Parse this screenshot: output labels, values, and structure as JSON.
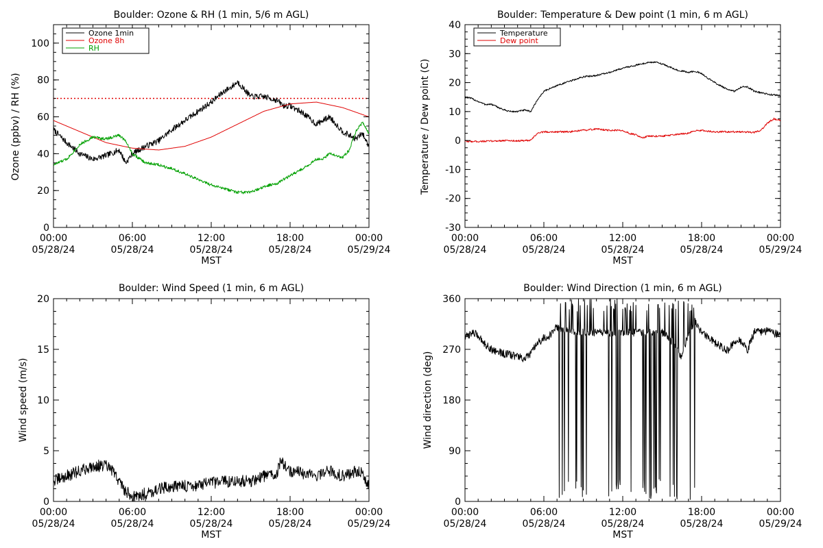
{
  "chart_data": [
    {
      "type": "line",
      "title": "Boulder: Ozone & RH (1 min, 5/6 m AGL)",
      "xlabel": "MST",
      "ylabel": "Ozone (ppbv) / RH (%)",
      "xlim": [
        0,
        24
      ],
      "ylim": [
        0,
        110
      ],
      "yticks": [
        0,
        20,
        40,
        60,
        80,
        100
      ],
      "xticks": [
        {
          "time": "00:00",
          "date": "05/28/24"
        },
        {
          "time": "06:00",
          "date": "05/28/24"
        },
        {
          "time": "12:00",
          "date": "05/28/24"
        },
        {
          "time": "18:00",
          "date": "05/28/24"
        },
        {
          "time": "00:00",
          "date": "05/29/24"
        }
      ],
      "legend_position": "top-left",
      "reference_lines": [
        {
          "y": 70,
          "color": "#e00000",
          "style": "dotted"
        }
      ],
      "series": [
        {
          "name": "Ozone 1min",
          "color": "#000000",
          "noise": 1.6,
          "x": [
            0,
            1,
            2,
            3,
            4,
            5,
            5.5,
            6,
            7,
            8,
            9,
            10,
            11,
            12,
            13,
            13.5,
            14,
            15,
            16,
            17,
            17.5,
            18,
            19,
            20,
            21,
            22,
            23,
            23.5,
            24
          ],
          "y": [
            53,
            46,
            40,
            37,
            39,
            42,
            35,
            40,
            44,
            47,
            53,
            58,
            63,
            68,
            74,
            76,
            79,
            71,
            71,
            69,
            66,
            66,
            62,
            56,
            60,
            52,
            48,
            51,
            44
          ]
        },
        {
          "name": "Ozone 8h",
          "color": "#e00000",
          "noise": 0,
          "x": [
            0,
            2,
            4,
            6,
            8,
            10,
            12,
            14,
            16,
            18,
            20,
            22,
            24
          ],
          "y": [
            58,
            52,
            46,
            43,
            42,
            44,
            49,
            56,
            63,
            67,
            68,
            65,
            60
          ]
        },
        {
          "name": "RH",
          "color": "#00a000",
          "noise": 0.8,
          "x": [
            0,
            1,
            2,
            3,
            4,
            5,
            5.5,
            6,
            7,
            8,
            9,
            10,
            11,
            12,
            13,
            14,
            15,
            16,
            17,
            18,
            19,
            20,
            20.5,
            21,
            22,
            22.5,
            23,
            23.5,
            24
          ],
          "y": [
            34,
            37,
            45,
            49,
            48,
            50,
            47,
            40,
            35,
            34,
            32,
            29,
            26,
            23,
            21,
            19,
            19,
            22,
            24,
            28,
            32,
            37,
            37,
            40,
            38,
            42,
            52,
            57,
            51
          ]
        }
      ]
    },
    {
      "type": "line",
      "title": "Boulder: Temperature & Dew point (1 min, 6 m AGL)",
      "xlabel": "MST",
      "ylabel": "Temperature / Dew point (C)",
      "xlim": [
        0,
        24
      ],
      "ylim": [
        -30,
        40
      ],
      "yticks": [
        -30,
        -20,
        -10,
        0,
        10,
        20,
        30,
        40
      ],
      "xticks": [
        {
          "time": "00:00",
          "date": "05/28/24"
        },
        {
          "time": "06:00",
          "date": "05/28/24"
        },
        {
          "time": "12:00",
          "date": "05/28/24"
        },
        {
          "time": "18:00",
          "date": "05/28/24"
        },
        {
          "time": "00:00",
          "date": "05/29/24"
        }
      ],
      "legend_position": "top-left",
      "series": [
        {
          "name": "Temperature",
          "color": "#000000",
          "noise": 0.3,
          "x": [
            0,
            0.5,
            1,
            1.5,
            2,
            2.5,
            3,
            3.5,
            4,
            4.5,
            5,
            5.5,
            6,
            7,
            8,
            9,
            10,
            11,
            12,
            13,
            14,
            14.5,
            15,
            16,
            16.5,
            17,
            17.5,
            18,
            19,
            20,
            20.5,
            21,
            21.5,
            22,
            23,
            24
          ],
          "y": [
            15,
            14.5,
            13.5,
            12.5,
            12.5,
            11.5,
            10.5,
            10,
            10,
            10.5,
            10,
            14,
            17,
            19,
            20.5,
            22,
            22.5,
            23.5,
            25,
            26,
            27,
            27,
            26.5,
            24.5,
            24,
            23.5,
            24,
            23,
            20,
            17.5,
            17,
            18.5,
            18.5,
            17,
            16,
            15.5
          ]
        },
        {
          "name": "Dew point",
          "color": "#e00000",
          "noise": 0.3,
          "x": [
            0,
            1,
            2,
            3,
            4,
            5,
            5.5,
            6,
            7,
            8,
            9,
            10,
            11,
            12,
            12.5,
            13,
            13.5,
            14,
            15,
            16,
            17,
            17.5,
            18,
            19,
            20,
            21,
            22,
            22.5,
            23,
            23.5,
            24
          ],
          "y": [
            -0.3,
            -0.3,
            -0.2,
            0,
            -0.1,
            0,
            2.5,
            3,
            3,
            3,
            3.5,
            4,
            3.5,
            3.5,
            2.5,
            2,
            1,
            1.5,
            1.5,
            2,
            2.5,
            3.5,
            3.5,
            3,
            3,
            3,
            2.8,
            3.5,
            6,
            7.5,
            7
          ]
        }
      ]
    },
    {
      "type": "line",
      "title": "Boulder: Wind Speed (1 min, 6 m AGL)",
      "xlabel": "MST",
      "ylabel": "Wind speed (m/s)",
      "xlim": [
        0,
        24
      ],
      "ylim": [
        0,
        20
      ],
      "yticks": [
        0,
        5,
        10,
        15,
        20
      ],
      "xticks": [
        {
          "time": "00:00",
          "date": "05/28/24"
        },
        {
          "time": "06:00",
          "date": "05/28/24"
        },
        {
          "time": "12:00",
          "date": "05/28/24"
        },
        {
          "time": "18:00",
          "date": "05/28/24"
        },
        {
          "time": "00:00",
          "date": "05/29/24"
        }
      ],
      "series": [
        {
          "color": "#000000",
          "noise": 0.6,
          "x": [
            0,
            1,
            2,
            3,
            4,
            4.5,
            5,
            5.5,
            6,
            6.5,
            7,
            8,
            9,
            10,
            11,
            12,
            13,
            14,
            15,
            16,
            17,
            17.3,
            18,
            19,
            20,
            21,
            22,
            23,
            23.5,
            24
          ],
          "y": [
            2,
            2.5,
            3,
            3.5,
            3.5,
            3,
            2,
            1,
            0.5,
            0.5,
            0.8,
            1.2,
            1.5,
            1.5,
            1.6,
            1.8,
            2,
            2,
            2,
            2.5,
            2.8,
            4,
            3,
            2.8,
            2.5,
            3,
            2.5,
            3,
            2.8,
            1.5
          ]
        }
      ]
    },
    {
      "type": "line",
      "title": "Boulder: Wind Direction (1 min, 6 m AGL)",
      "xlabel": "MST",
      "ylabel": "Wind direction (deg)",
      "xlim": [
        0,
        24
      ],
      "ylim": [
        0,
        360
      ],
      "yticks": [
        0,
        90,
        180,
        270,
        360
      ],
      "xticks": [
        {
          "time": "00:00",
          "date": "05/28/24"
        },
        {
          "time": "06:00",
          "date": "05/28/24"
        },
        {
          "time": "12:00",
          "date": "05/28/24"
        },
        {
          "time": "18:00",
          "date": "05/28/24"
        },
        {
          "time": "00:00",
          "date": "05/29/24"
        }
      ],
      "series": [
        {
          "color": "#000000",
          "noise": 7,
          "x": [
            0,
            0.5,
            1,
            1.5,
            2,
            3,
            4,
            4.5,
            5,
            5.5,
            6,
            6.5,
            7,
            8,
            9,
            10,
            11,
            12,
            13,
            14,
            15,
            16,
            16.5,
            17,
            17.5,
            18,
            19,
            20,
            20.5,
            21,
            21.5,
            22,
            23,
            24
          ],
          "y": [
            290,
            300,
            295,
            280,
            270,
            262,
            258,
            252,
            262,
            280,
            290,
            295,
            310,
            300,
            300,
            300,
            300,
            300,
            300,
            300,
            300,
            280,
            255,
            300,
            320,
            300,
            282,
            268,
            285,
            285,
            270,
            300,
            303,
            295
          ],
          "wrap_start": 7.0,
          "wrap_end": 17.5
        }
      ]
    }
  ]
}
